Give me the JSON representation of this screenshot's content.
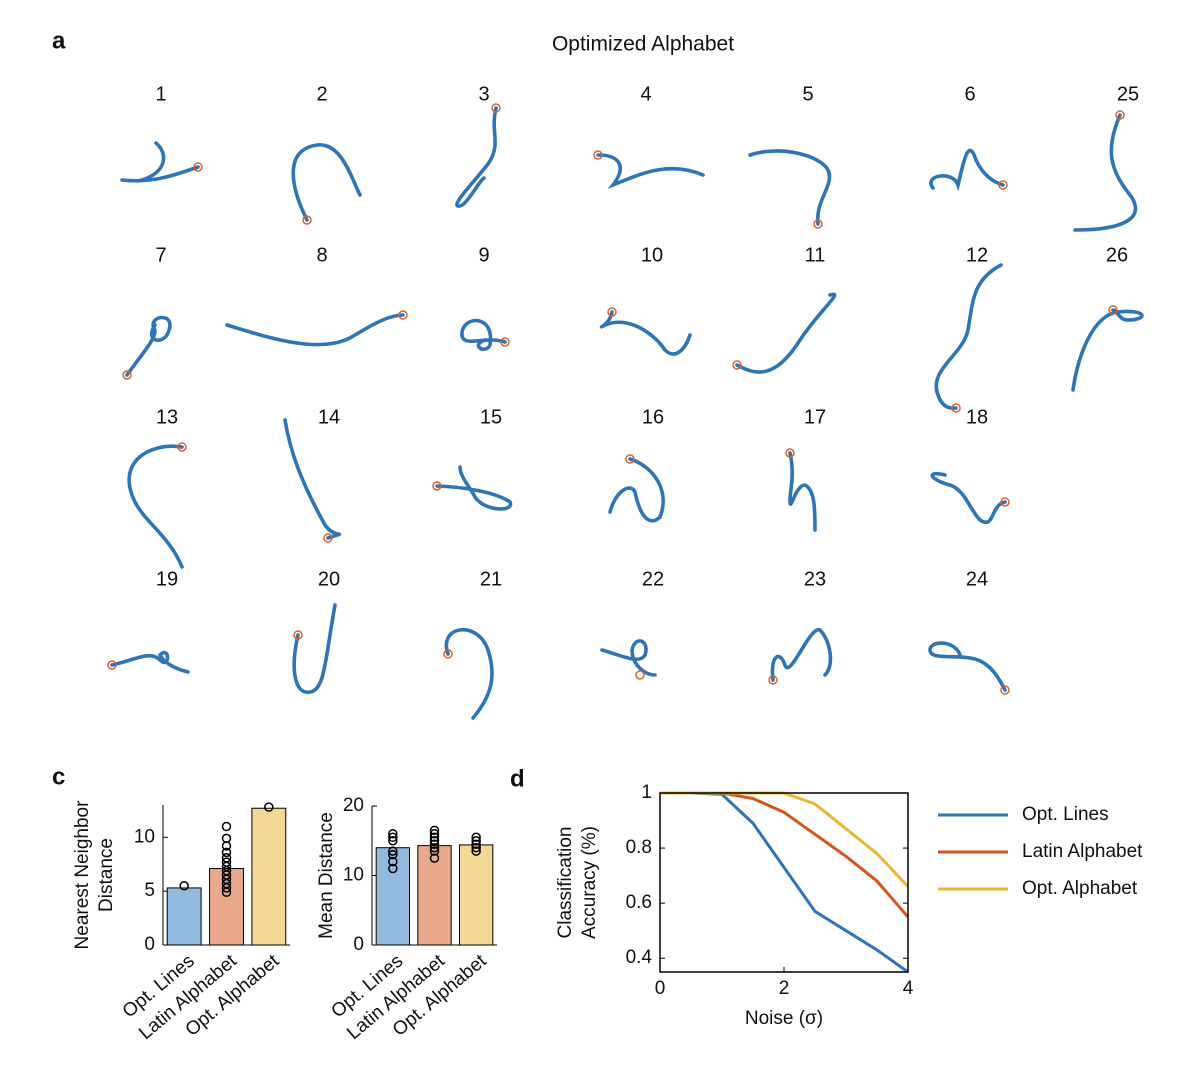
{
  "panel_a": {
    "label": "a",
    "title": "Optimized Alphabet",
    "glyphs": [
      "1",
      "2",
      "3",
      "4",
      "5",
      "6",
      "25",
      "7",
      "8",
      "9",
      "10",
      "11",
      "12",
      "26",
      "13",
      "14",
      "15",
      "16",
      "17",
      "18",
      "19",
      "20",
      "21",
      "22",
      "23",
      "24"
    ]
  },
  "panel_c": {
    "label": "c"
  },
  "panel_d": {
    "label": "d"
  },
  "chart_data": [
    {
      "type": "bar",
      "ylabel": [
        "Nearest Neighbor",
        "Distance"
      ],
      "categories": [
        "Opt. Lines",
        "Latin Alphabet",
        "Opt. Alphabet"
      ],
      "values": [
        5.3,
        7.1,
        12.7
      ],
      "colors": [
        "#92badf",
        "#eaa98b",
        "#f3d793"
      ],
      "points": [
        [
          5.5
        ],
        [
          4.9,
          5.3,
          5.7,
          6.1,
          6.5,
          6.9,
          7.3,
          7.7,
          8.1,
          8.6,
          9.2,
          9.9,
          11
        ],
        [
          12.8
        ]
      ],
      "ylim": [
        0,
        13
      ],
      "yticks": [
        0,
        5,
        10
      ]
    },
    {
      "type": "bar",
      "ylabel": [
        "Mean Distance"
      ],
      "categories": [
        "Opt. Lines",
        "Latin Alphabet",
        "Opt. Alphabet"
      ],
      "values": [
        14,
        14.3,
        14.4
      ],
      "colors": [
        "#92badf",
        "#eaa98b",
        "#f3d793"
      ],
      "points": [
        [
          11,
          12,
          13,
          13.5,
          15,
          15.5,
          16
        ],
        [
          12.5,
          13.5,
          14,
          14.5,
          15,
          15.5,
          16,
          16.5
        ],
        [
          13.5,
          14,
          14.5,
          15,
          15.5
        ]
      ],
      "ylim": [
        0,
        20
      ],
      "yticks": [
        0,
        10,
        20
      ]
    },
    {
      "type": "line",
      "xlabel": "Noise (σ)",
      "ylabel": [
        "Classification",
        "Accuracy (%)"
      ],
      "x": [
        0,
        0.5,
        1,
        1.5,
        2,
        2.5,
        3,
        3.5,
        4
      ],
      "series": [
        {
          "name": "Opt. Lines",
          "color": "#2f74b5",
          "values": [
            1,
            1,
            0.995,
            0.89,
            0.73,
            0.57,
            0.5,
            0.43,
            0.35
          ]
        },
        {
          "name": "Latin Alphabet",
          "color": "#d4541d",
          "values": [
            1,
            1,
            1,
            0.98,
            0.93,
            0.85,
            0.77,
            0.68,
            0.55
          ]
        },
        {
          "name": "Opt. Alphabet",
          "color": "#e8b732",
          "values": [
            1,
            1,
            1,
            1,
            1,
            0.96,
            0.87,
            0.78,
            0.66
          ]
        }
      ],
      "xlim": [
        0,
        4
      ],
      "ylim": [
        0.35,
        1
      ],
      "xticks": [
        0,
        2,
        4
      ],
      "yticks": [
        0.4,
        0.6,
        0.8,
        1
      ],
      "legend": "right"
    }
  ]
}
